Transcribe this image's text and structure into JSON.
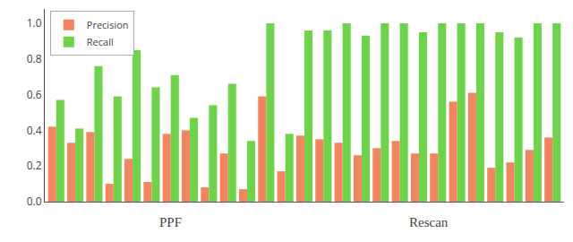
{
  "chart_data": {
    "type": "bar",
    "categories": [
      null,
      null,
      null,
      null,
      null,
      null,
      null,
      null,
      null,
      null,
      null,
      null,
      null,
      null,
      null,
      null,
      null,
      null,
      null,
      null,
      null,
      null,
      null,
      null,
      null,
      null,
      null
    ],
    "series": [
      {
        "name": "Precision",
        "color": "#F4845F",
        "values": [
          0.42,
          0.33,
          0.39,
          0.1,
          0.24,
          0.11,
          0.38,
          0.4,
          0.08,
          0.27,
          0.07,
          0.59,
          0.17,
          0.37,
          0.35,
          0.33,
          0.26,
          0.3,
          0.34,
          0.27,
          0.27,
          0.56,
          0.61,
          0.19,
          0.22,
          0.29,
          0.36
        ]
      },
      {
        "name": "Recall",
        "color": "#6DD44A",
        "values": [
          0.57,
          0.41,
          0.76,
          0.59,
          0.85,
          0.64,
          0.71,
          0.47,
          0.54,
          0.66,
          0.34,
          1.0,
          0.38,
          0.96,
          0.96,
          1.0,
          0.93,
          1.0,
          1.0,
          0.95,
          1.0,
          1.0,
          1.0,
          0.95,
          0.92,
          1.0,
          1.0
        ]
      }
    ],
    "annotations": [
      {
        "text": "PPF",
        "x": 6
      },
      {
        "text": "Rescan",
        "x": 19.5
      }
    ],
    "ylim": [
      0,
      1.08
    ],
    "yticks": [
      {
        "value": 0.0,
        "label": "0.0"
      },
      0.2,
      0.4,
      0.6,
      0.8,
      {
        "value": 1.0,
        "label": "1.0"
      }
    ],
    "grid": false,
    "legend": "upper left",
    "tick_labels": "y"
  }
}
